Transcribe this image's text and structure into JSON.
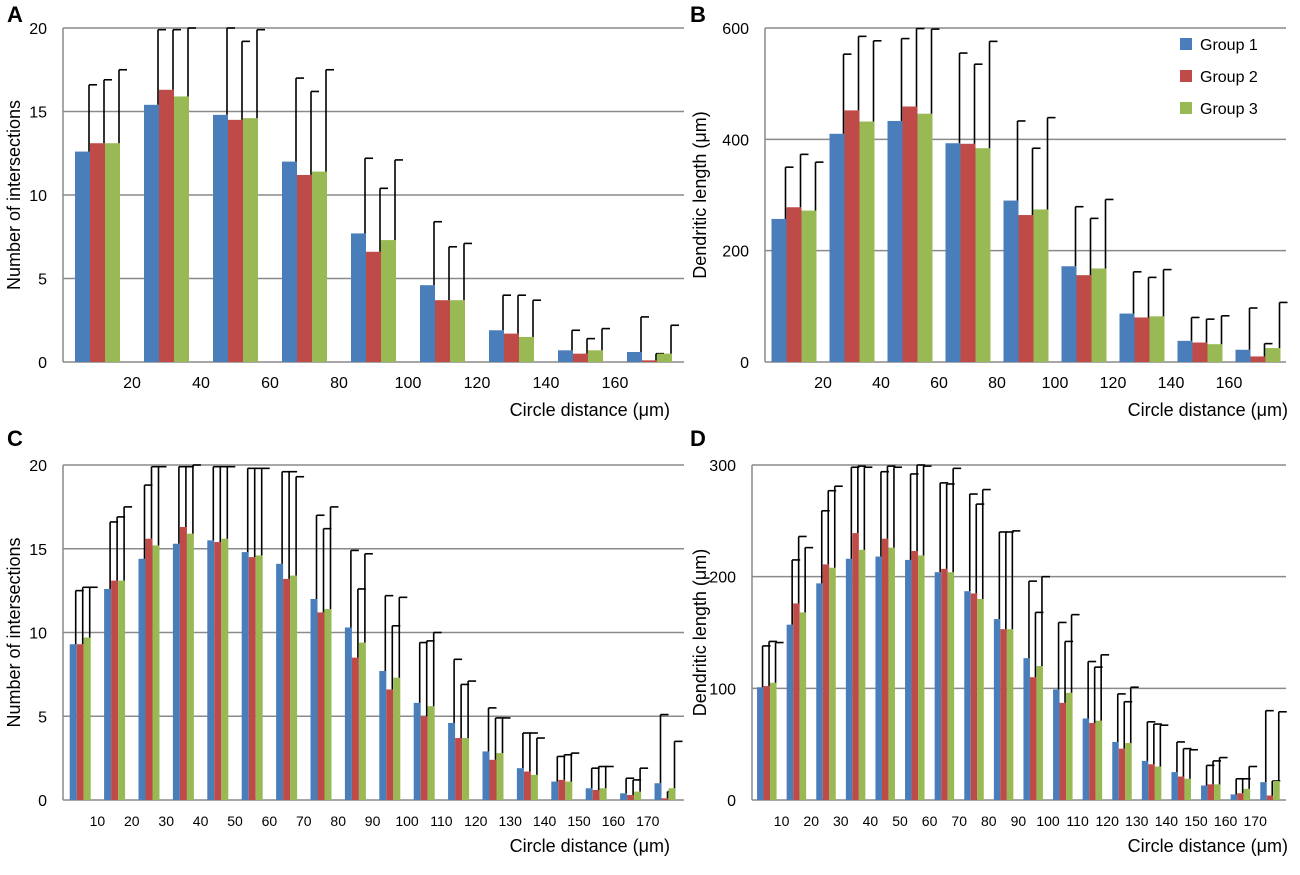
{
  "colors": {
    "group1": "#4a7ebb",
    "group2": "#be4b48",
    "group3": "#98b954",
    "grid": "#8a8a8a",
    "error": "#000000"
  },
  "legend": [
    "Group 1",
    "Group 2",
    "Group 3"
  ],
  "chart_data": [
    {
      "panel": "A",
      "type": "bar",
      "title": "",
      "xlabel": "Circle distance (μm)",
      "ylabel": "Number of intersections",
      "ylim": [
        0,
        20
      ],
      "yticks": [
        "0",
        "5",
        "10",
        "15",
        "20"
      ],
      "xticks": [
        "20",
        "40",
        "60",
        "80",
        "100",
        "120",
        "140",
        "160"
      ],
      "grid": true,
      "legend_position": "none",
      "categories": [
        "10",
        "30",
        "50",
        "70",
        "90",
        "110",
        "130",
        "150",
        "170"
      ],
      "series": [
        {
          "name": "Group 1",
          "values": [
            12.6,
            15.4,
            14.8,
            12.0,
            7.7,
            4.6,
            1.9,
            0.7,
            0.6
          ],
          "errors": [
            4.0,
            4.5,
            5.2,
            5.0,
            4.5,
            3.8,
            2.1,
            1.2,
            2.1
          ]
        },
        {
          "name": "Group 2",
          "values": [
            13.1,
            16.3,
            14.5,
            11.2,
            6.6,
            3.7,
            1.7,
            0.5,
            0.1
          ],
          "errors": [
            3.8,
            3.6,
            4.7,
            5.0,
            3.8,
            3.2,
            2.3,
            0.9,
            0.4
          ]
        },
        {
          "name": "Group 3",
          "values": [
            13.1,
            15.9,
            14.6,
            11.4,
            7.3,
            3.7,
            1.5,
            0.7,
            0.5
          ],
          "errors": [
            4.4,
            4.1,
            5.3,
            6.1,
            4.8,
            3.4,
            2.2,
            1.3,
            1.7
          ]
        }
      ]
    },
    {
      "panel": "B",
      "type": "bar",
      "title": "",
      "xlabel": "Circle distance (μm)",
      "ylabel": "Dendritic length (μm)",
      "ylim": [
        0,
        600
      ],
      "yticks": [
        "0",
        "200",
        "400",
        "600"
      ],
      "xticks": [
        "20",
        "40",
        "60",
        "80",
        "100",
        "120",
        "140",
        "160"
      ],
      "grid": true,
      "legend_position": "top-right",
      "categories": [
        "10",
        "30",
        "50",
        "70",
        "90",
        "110",
        "130",
        "150",
        "170"
      ],
      "series": [
        {
          "name": "Group 1",
          "values": [
            257,
            410,
            433,
            393,
            290,
            172,
            87,
            38,
            22
          ],
          "errors": [
            93,
            143,
            148,
            162,
            143,
            107,
            75,
            42,
            75
          ]
        },
        {
          "name": "Group 2",
          "values": [
            278,
            452,
            459,
            392,
            264,
            156,
            80,
            35,
            10
          ],
          "errors": [
            95,
            133,
            140,
            143,
            120,
            102,
            72,
            42,
            23
          ]
        },
        {
          "name": "Group 3",
          "values": [
            272,
            432,
            446,
            384,
            274,
            168,
            82,
            32,
            25
          ],
          "errors": [
            87,
            145,
            152,
            192,
            165,
            124,
            84,
            51,
            82
          ]
        }
      ]
    },
    {
      "panel": "C",
      "type": "bar",
      "title": "",
      "xlabel": "Circle distance (μm)",
      "ylabel": "Number of intersections",
      "ylim": [
        0,
        20
      ],
      "yticks": [
        "0",
        "5",
        "10",
        "15",
        "20"
      ],
      "xticks": [
        "10",
        "20",
        "30",
        "40",
        "50",
        "60",
        "70",
        "80",
        "90",
        "100",
        "110",
        "120",
        "130",
        "140",
        "150",
        "160",
        "170"
      ],
      "grid": true,
      "legend_position": "none",
      "categories": [
        "5",
        "15",
        "25",
        "35",
        "45",
        "55",
        "65",
        "75",
        "85",
        "95",
        "105",
        "115",
        "125",
        "135",
        "145",
        "155",
        "165",
        "175"
      ],
      "series": [
        {
          "name": "Group 1",
          "values": [
            9.3,
            12.6,
            14.4,
            15.3,
            15.5,
            14.8,
            14.1,
            12.0,
            10.3,
            7.7,
            5.8,
            4.6,
            2.9,
            1.9,
            1.1,
            0.7,
            0.4,
            1.0
          ],
          "errors": [
            3.2,
            4.0,
            4.4,
            4.6,
            4.4,
            5.0,
            5.5,
            5.0,
            4.6,
            4.5,
            3.6,
            3.8,
            2.6,
            2.1,
            1.5,
            1.2,
            0.9,
            4.1
          ]
        },
        {
          "name": "Group 2",
          "values": [
            9.3,
            13.1,
            15.6,
            16.3,
            15.4,
            14.5,
            13.2,
            11.2,
            8.5,
            6.6,
            5.0,
            3.7,
            2.4,
            1.7,
            1.2,
            0.6,
            0.3,
            0.1
          ],
          "errors": [
            3.4,
            3.8,
            4.3,
            3.6,
            4.5,
            5.3,
            6.4,
            5.0,
            4.1,
            3.8,
            4.5,
            3.2,
            2.5,
            2.3,
            1.5,
            1.4,
            0.9,
            0.4
          ]
        },
        {
          "name": "Group 3",
          "values": [
            9.7,
            13.1,
            15.2,
            15.9,
            15.6,
            14.6,
            13.4,
            11.4,
            9.4,
            7.3,
            5.6,
            3.7,
            2.8,
            1.5,
            1.1,
            0.7,
            0.5,
            0.7
          ],
          "errors": [
            3.0,
            4.4,
            4.7,
            4.1,
            4.3,
            5.2,
            5.9,
            6.1,
            5.3,
            4.8,
            4.4,
            3.4,
            2.1,
            2.2,
            1.7,
            1.3,
            1.4,
            2.8
          ]
        }
      ]
    },
    {
      "panel": "D",
      "type": "bar",
      "title": "",
      "xlabel": "Circle distance (μm)",
      "ylabel": "Dendritic length (μm)",
      "ylim": [
        0,
        300
      ],
      "yticks": [
        "0",
        "100",
        "200",
        "300"
      ],
      "xticks": [
        "10",
        "20",
        "30",
        "40",
        "50",
        "60",
        "70",
        "80",
        "90",
        "100",
        "110",
        "120",
        "130",
        "140",
        "150",
        "160",
        "170"
      ],
      "grid": true,
      "legend_position": "none",
      "categories": [
        "5",
        "15",
        "25",
        "35",
        "45",
        "55",
        "65",
        "75",
        "85",
        "95",
        "105",
        "115",
        "125",
        "135",
        "145",
        "155",
        "165",
        "175"
      ],
      "series": [
        {
          "name": "Group 1",
          "values": [
            101,
            157,
            194,
            216,
            218,
            215,
            204,
            187,
            162,
            127,
            99,
            73,
            52,
            35,
            25,
            13,
            5,
            16
          ],
          "errors": [
            37,
            58,
            65,
            82,
            76,
            77,
            80,
            87,
            78,
            69,
            60,
            51,
            43,
            35,
            27,
            18,
            14,
            64
          ]
        },
        {
          "name": "Group 2",
          "values": [
            102,
            176,
            211,
            239,
            234,
            223,
            207,
            185,
            153,
            110,
            87,
            69,
            46,
            32,
            21,
            14,
            6,
            4
          ],
          "errors": [
            40,
            60,
            66,
            60,
            65,
            77,
            76,
            80,
            87,
            58,
            55,
            50,
            42,
            36,
            25,
            21,
            13,
            13
          ]
        },
        {
          "name": "Group 3",
          "values": [
            105,
            168,
            208,
            224,
            226,
            219,
            204,
            180,
            153,
            120,
            96,
            71,
            51,
            30,
            19,
            14,
            10,
            17
          ],
          "errors": [
            36,
            58,
            73,
            74,
            72,
            80,
            93,
            98,
            88,
            80,
            70,
            59,
            50,
            37,
            26,
            24,
            20,
            62
          ]
        }
      ]
    }
  ]
}
